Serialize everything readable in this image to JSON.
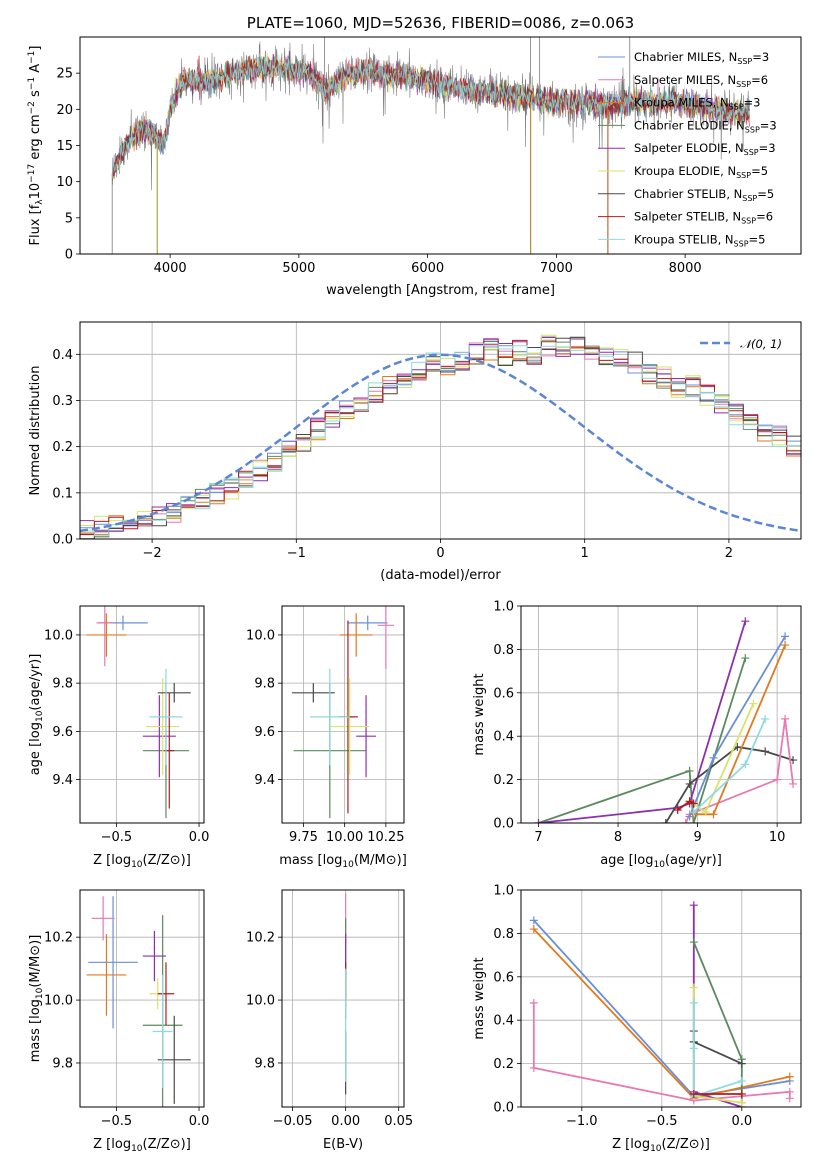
{
  "colors": {
    "chabrier_miles": "#6a8fd8",
    "salpeter_miles": "#e67ab4",
    "kroupa_miles": "#e07a1f",
    "chabrier_elodie": "#5a8a5e",
    "salpeter_elodie": "#8e2fb0",
    "kroupa_elodie": "#d9e36a",
    "chabrier_stelib": "#4a4a4a",
    "salpeter_stelib": "#b01c1c",
    "kroupa_stelib": "#8fd9e0",
    "data": "#7a7a7a",
    "gaussian": "#5b86d6"
  },
  "chart_data": [
    {
      "id": "spectrum",
      "type": "line",
      "title": "PLATE=1060, MJD=52636, FIBERID=0086, z=0.063",
      "xlabel": "wavelength [Angstrom, rest frame]",
      "ylabel": "Flux [fλ10−17 erg cm−2 s−1 A−1]",
      "xlim": [
        3300,
        8900
      ],
      "ylim": [
        0,
        30
      ],
      "xticks": [
        4000,
        5000,
        6000,
        7000,
        8000
      ],
      "yticks": [
        0,
        5,
        10,
        15,
        20,
        25
      ],
      "grid": false,
      "legend_position": "top-right",
      "continuum": [
        [
          3550,
          11
        ],
        [
          3650,
          15
        ],
        [
          3750,
          17
        ],
        [
          3850,
          17
        ],
        [
          3950,
          15
        ],
        [
          4000,
          20
        ],
        [
          4100,
          24
        ],
        [
          4300,
          24
        ],
        [
          4500,
          25
        ],
        [
          4700,
          26
        ],
        [
          4900,
          25.5
        ],
        [
          5100,
          25
        ],
        [
          5200,
          22.5
        ],
        [
          5400,
          25
        ],
        [
          5600,
          25
        ],
        [
          5800,
          24.5
        ],
        [
          6000,
          24
        ],
        [
          6200,
          23
        ],
        [
          6400,
          22.5
        ],
        [
          6600,
          22
        ],
        [
          6800,
          21.5
        ],
        [
          7000,
          21
        ],
        [
          7200,
          21
        ],
        [
          7400,
          20.5
        ],
        [
          7600,
          21
        ],
        [
          7800,
          21
        ],
        [
          8000,
          21
        ],
        [
          8200,
          20
        ],
        [
          8400,
          19.5
        ],
        [
          8500,
          19.5
        ]
      ],
      "series": [
        {
          "name": "Chabrier MILES, N",
          "n_ssp": "=3",
          "color_key": "chabrier_miles"
        },
        {
          "name": "Salpeter MILES, N",
          "n_ssp": "=6",
          "color_key": "salpeter_miles"
        },
        {
          "name": "Kroupa MILES, N",
          "n_ssp": "=3",
          "color_key": "kroupa_miles"
        },
        {
          "name": "Chabrier ELODIE, N",
          "n_ssp": "=3",
          "color_key": "chabrier_elodie"
        },
        {
          "name": "Salpeter ELODIE, N",
          "n_ssp": "=3",
          "color_key": "salpeter_elodie"
        },
        {
          "name": "Kroupa ELODIE, N",
          "n_ssp": "=5",
          "color_key": "kroupa_elodie"
        },
        {
          "name": "Chabrier STELIB, N",
          "n_ssp": "=5",
          "color_key": "chabrier_stelib"
        },
        {
          "name": "Salpeter STELIB, N",
          "n_ssp": "=6",
          "color_key": "salpeter_stelib"
        },
        {
          "name": "Kroupa STELIB, N",
          "n_ssp": "=5",
          "color_key": "kroupa_stelib"
        }
      ],
      "ssp_subscript": "SSP"
    },
    {
      "id": "residuals",
      "type": "histogram",
      "xlabel": "(data-model)/error",
      "ylabel": "Normed distribution",
      "xlim": [
        -2.5,
        2.5
      ],
      "ylim": [
        0,
        0.47
      ],
      "xticks": [
        -2,
        -1,
        0,
        1,
        2
      ],
      "xtick_labels": [
        "−2",
        "−1",
        "0",
        "1",
        "2"
      ],
      "yticks": [
        0.0,
        0.1,
        0.2,
        0.3,
        0.4
      ],
      "ytick_labels": [
        "0.0",
        "0.1",
        "0.2",
        "0.3",
        "0.4"
      ],
      "grid": true,
      "legend_position": "top-right",
      "legend_label": "𝒩(0, 1)",
      "bin_width": 0.1,
      "bin_start": -2.5,
      "bins_reference": [
        0.02,
        0.025,
        0.03,
        0.04,
        0.045,
        0.05,
        0.06,
        0.075,
        0.085,
        0.1,
        0.11,
        0.13,
        0.15,
        0.17,
        0.19,
        0.21,
        0.24,
        0.26,
        0.28,
        0.3,
        0.32,
        0.33,
        0.35,
        0.36,
        0.38,
        0.38,
        0.39,
        0.4,
        0.41,
        0.4,
        0.41,
        0.4,
        0.42,
        0.42,
        0.42,
        0.41,
        0.4,
        0.39,
        0.38,
        0.36,
        0.35,
        0.33,
        0.33,
        0.31,
        0.29,
        0.27,
        0.25,
        0.23,
        0.22,
        0.2,
        0.18,
        0.16,
        0.14,
        0.12,
        0.1,
        0.09,
        0.075,
        0.065,
        0.055,
        0.05,
        0.045,
        0.04,
        0.035,
        0.03,
        0.03,
        0.025,
        0.022,
        0.02,
        0.018,
        0.016
      ]
    },
    {
      "id": "age_vs_Z",
      "type": "errorbar",
      "xlabel": "Z [log10(Z/Z⊙)]",
      "ylabel": "age  [log10(age/yr)]",
      "xlim": [
        -0.72,
        0.03
      ],
      "ylim": [
        9.22,
        10.12
      ],
      "xticks": [
        -0.5,
        0.0
      ],
      "xtick_labels": [
        "−0.5",
        "0.0"
      ],
      "yticks": [
        9.4,
        9.6,
        9.8,
        10.0
      ],
      "ytick_labels": [
        "9.4",
        "9.6",
        "9.8",
        "10.0"
      ],
      "grid": true,
      "points": [
        {
          "c": "chabrier_miles",
          "x": -0.46,
          "xerr": 0.15,
          "y": 10.05,
          "yerr": 0.03
        },
        {
          "c": "salpeter_miles",
          "x": -0.57,
          "xerr": 0.05,
          "y": 10.05,
          "yerr": 0.18
        },
        {
          "c": "kroupa_miles",
          "x": -0.56,
          "xerr": 0.12,
          "y": 10.0,
          "yerr": 0.09
        },
        {
          "c": "chabrier_elodie",
          "x": -0.2,
          "xerr": 0.14,
          "y": 9.52,
          "yerr": 0.28
        },
        {
          "c": "salpeter_elodie",
          "x": -0.24,
          "xerr": 0.1,
          "y": 9.58,
          "yerr": 0.17
        },
        {
          "c": "kroupa_elodie",
          "x": -0.22,
          "xerr": 0.1,
          "y": 9.62,
          "yerr": 0.2
        },
        {
          "c": "chabrier_stelib",
          "x": -0.15,
          "xerr": 0.1,
          "y": 9.76,
          "yerr": 0.04
        },
        {
          "c": "salpeter_stelib",
          "x": -0.18,
          "xerr": 0.03,
          "y": 9.52,
          "yerr": 0.24
        },
        {
          "c": "kroupa_stelib",
          "x": -0.2,
          "xerr": 0.1,
          "y": 9.66,
          "yerr": 0.2
        }
      ]
    },
    {
      "id": "age_vs_mass",
      "type": "errorbar",
      "xlabel": "mass [log10(M/M⊙)]",
      "ylabel": "",
      "xlim": [
        9.62,
        10.36
      ],
      "ylim": [
        9.22,
        10.12
      ],
      "xticks": [
        9.75,
        10.0,
        10.25
      ],
      "xtick_labels": [
        "9.75",
        "10.00",
        "10.25"
      ],
      "yticks": [
        9.4,
        9.6,
        9.8,
        10.0
      ],
      "ytick_labels": [
        "9.4",
        "9.6",
        "9.8",
        "10.0"
      ],
      "grid": true,
      "points": [
        {
          "c": "chabrier_miles",
          "x": 10.14,
          "xerr": 0.12,
          "y": 10.05,
          "yerr": 0.03
        },
        {
          "c": "salpeter_miles",
          "x": 10.25,
          "xerr": 0.05,
          "y": 10.04,
          "yerr": 0.18
        },
        {
          "c": "kroupa_miles",
          "x": 10.07,
          "xerr": 0.1,
          "y": 10.0,
          "yerr": 0.09
        },
        {
          "c": "chabrier_elodie",
          "x": 9.91,
          "xerr": 0.22,
          "y": 9.52,
          "yerr": 0.28
        },
        {
          "c": "salpeter_elodie",
          "x": 10.13,
          "xerr": 0.06,
          "y": 9.58,
          "yerr": 0.17
        },
        {
          "c": "kroupa_elodie",
          "x": 10.03,
          "xerr": 0.12,
          "y": 9.62,
          "yerr": 0.2
        },
        {
          "c": "chabrier_stelib",
          "x": 9.81,
          "xerr": 0.13,
          "y": 9.76,
          "yerr": 0.04
        },
        {
          "c": "salpeter_stelib",
          "x": 10.02,
          "xerr": 0.06,
          "y": 9.66,
          "yerr": 0.4
        },
        {
          "c": "kroupa_stelib",
          "x": 9.91,
          "xerr": 0.12,
          "y": 9.66,
          "yerr": 0.2
        }
      ]
    },
    {
      "id": "weight_vs_age",
      "type": "line",
      "xlabel": "age  [log10(age/yr)]",
      "ylabel": "mass weight",
      "xlim": [
        6.78,
        10.3
      ],
      "ylim": [
        0,
        1.0
      ],
      "xticks": [
        7,
        8,
        9,
        10
      ],
      "xtick_labels": [
        "7",
        "8",
        "9",
        "10"
      ],
      "yticks": [
        0.0,
        0.2,
        0.4,
        0.6,
        0.8,
        1.0
      ],
      "ytick_labels": [
        "0.0",
        "0.2",
        "0.4",
        "0.6",
        "0.8",
        "1.0"
      ],
      "grid": true,
      "series": [
        {
          "c": "chabrier_elodie",
          "points": [
            [
              7.0,
              0.0
            ],
            [
              8.9,
              0.24
            ],
            [
              8.95,
              0.0
            ],
            [
              9.6,
              0.76
            ]
          ]
        },
        {
          "c": "salpeter_elodie",
          "points": [
            [
              7.0,
              0.0
            ],
            [
              8.75,
              0.07
            ],
            [
              8.9,
              0.09
            ],
            [
              9.6,
              0.93
            ]
          ]
        },
        {
          "c": "chabrier_stelib",
          "points": [
            [
              8.6,
              0.0
            ],
            [
              8.9,
              0.18
            ],
            [
              9.5,
              0.35
            ],
            [
              9.85,
              0.33
            ],
            [
              10.2,
              0.29
            ]
          ]
        },
        {
          "c": "salpeter_miles",
          "points": [
            [
              8.85,
              0.0
            ],
            [
              8.9,
              0.04
            ],
            [
              10.0,
              0.2
            ],
            [
              10.1,
              0.48
            ],
            [
              10.2,
              0.18
            ]
          ]
        },
        {
          "c": "chabrier_miles",
          "points": [
            [
              8.9,
              0.03
            ],
            [
              9.2,
              0.3
            ],
            [
              10.1,
              0.86
            ]
          ]
        },
        {
          "c": "kroupa_miles",
          "points": [
            [
              8.95,
              0.04
            ],
            [
              9.2,
              0.04
            ],
            [
              10.1,
              0.82
            ]
          ]
        },
        {
          "c": "kroupa_elodie",
          "points": [
            [
              8.9,
              0.1
            ],
            [
              9.1,
              0.05
            ],
            [
              9.7,
              0.55
            ]
          ]
        },
        {
          "c": "kroupa_stelib",
          "points": [
            [
              8.95,
              0.05
            ],
            [
              9.6,
              0.27
            ],
            [
              9.85,
              0.48
            ]
          ]
        },
        {
          "c": "salpeter_stelib",
          "points": [
            [
              8.75,
              0.06
            ],
            [
              8.9,
              0.1
            ],
            [
              8.95,
              0.09
            ]
          ]
        }
      ]
    },
    {
      "id": "mass_vs_Z",
      "type": "errorbar",
      "xlabel": "Z [log10(Z/Z⊙)]",
      "ylabel": "mass [log10(M/M⊙)]",
      "xlim": [
        -0.72,
        0.03
      ],
      "ylim": [
        9.66,
        10.35
      ],
      "xticks": [
        -0.5,
        0.0
      ],
      "xtick_labels": [
        "−0.5",
        "0.0"
      ],
      "yticks": [
        9.8,
        10.0,
        10.2
      ],
      "ytick_labels": [
        "9.8",
        "10.0",
        "10.2"
      ],
      "grid": true,
      "points": [
        {
          "c": "chabrier_miles",
          "x": -0.52,
          "xerr": 0.15,
          "y": 10.12,
          "yerr": 0.21
        },
        {
          "c": "salpeter_miles",
          "x": -0.58,
          "xerr": 0.07,
          "y": 10.26,
          "yerr": 0.07
        },
        {
          "c": "kroupa_miles",
          "x": -0.56,
          "xerr": 0.12,
          "y": 10.08,
          "yerr": 0.13
        },
        {
          "c": "chabrier_elodie",
          "x": -0.22,
          "xerr": 0.12,
          "y": 9.92,
          "yerr": 0.35
        },
        {
          "c": "salpeter_elodie",
          "x": -0.27,
          "xerr": 0.07,
          "y": 10.14,
          "yerr": 0.08
        },
        {
          "c": "kroupa_elodie",
          "x": -0.25,
          "xerr": 0.05,
          "y": 10.02,
          "yerr": 0.05
        },
        {
          "c": "chabrier_stelib",
          "x": -0.15,
          "xerr": 0.1,
          "y": 9.81,
          "yerr": 0.14
        },
        {
          "c": "salpeter_stelib",
          "x": -0.2,
          "xerr": 0.05,
          "y": 10.02,
          "yerr": 0.1
        },
        {
          "c": "kroupa_stelib",
          "x": -0.22,
          "xerr": 0.06,
          "y": 9.9,
          "yerr": 0.18
        }
      ]
    },
    {
      "id": "mass_vs_EBV",
      "type": "errorbar",
      "xlabel": "E(B-V)",
      "ylabel": "",
      "xlim": [
        -0.06,
        0.055
      ],
      "ylim": [
        9.66,
        10.35
      ],
      "xticks": [
        -0.05,
        0.0,
        0.05
      ],
      "xtick_labels": [
        "−0.05",
        "0.00",
        "0.05"
      ],
      "yticks": [
        9.8,
        10.0,
        10.2
      ],
      "ytick_labels": [
        "9.8",
        "10.0",
        "10.2"
      ],
      "grid": true,
      "points": [
        {
          "c": "salpeter_miles",
          "x": 0.0,
          "xerr": 0.0,
          "y": 10.26,
          "yerr": 0.08
        },
        {
          "c": "chabrier_elodie",
          "x": 0.0,
          "xerr": 0.0,
          "y": 10.1,
          "yerr": 0.16
        },
        {
          "c": "salpeter_elodie",
          "x": 0.0,
          "xerr": 0.0,
          "y": 10.14,
          "yerr": 0.07
        },
        {
          "c": "chabrier_stelib",
          "x": 0.0,
          "xerr": 0.0,
          "y": 9.8,
          "yerr": 0.1
        },
        {
          "c": "salpeter_stelib",
          "x": 0.0,
          "xerr": 0.0,
          "y": 10.06,
          "yerr": 0.06
        },
        {
          "c": "kroupa_stelib",
          "x": 0.0,
          "xerr": 0.0,
          "y": 9.92,
          "yerr": 0.18
        }
      ]
    },
    {
      "id": "weight_vs_Z",
      "type": "line",
      "xlabel": "Z [log10(Z/Z⊙)]",
      "ylabel": "mass weight",
      "xlim": [
        -1.38,
        0.37
      ],
      "ylim": [
        0,
        1.0
      ],
      "xticks": [
        -1.0,
        -0.5,
        0.0
      ],
      "xtick_labels": [
        "−1.0",
        "−0.5",
        "0.0"
      ],
      "yticks": [
        0.0,
        0.2,
        0.4,
        0.6,
        0.8,
        1.0
      ],
      "ytick_labels": [
        "0.0",
        "0.2",
        "0.4",
        "0.6",
        "0.8",
        "1.0"
      ],
      "grid": true,
      "series": [
        {
          "c": "chabrier_miles",
          "points": [
            [
              -1.3,
              0.86
            ],
            [
              -0.3,
              0.05
            ],
            [
              0.3,
              0.12
            ]
          ]
        },
        {
          "c": "kroupa_miles",
          "points": [
            [
              -1.3,
              0.82
            ],
            [
              -0.3,
              0.04
            ],
            [
              0.3,
              0.14
            ]
          ]
        },
        {
          "c": "salpeter_miles",
          "points": [
            [
              -1.3,
              0.48
            ],
            [
              -1.3,
              0.18
            ],
            [
              -0.3,
              0.03
            ],
            [
              0.3,
              0.07
            ],
            [
              0.3,
              0.04
            ]
          ]
        },
        {
          "c": "salpeter_elodie",
          "points": [
            [
              -0.3,
              0.93
            ],
            [
              -0.3,
              0.07
            ],
            [
              0.0,
              0.0
            ]
          ]
        },
        {
          "c": "chabrier_elodie",
          "points": [
            [
              -0.3,
              0.76
            ],
            [
              0.0,
              0.22
            ],
            [
              0.0,
              0.02
            ]
          ]
        },
        {
          "c": "kroupa_elodie",
          "points": [
            [
              -0.3,
              0.55
            ],
            [
              -0.3,
              0.05
            ],
            [
              0.0,
              0.02
            ]
          ]
        },
        {
          "c": "chabrier_stelib",
          "points": [
            [
              -0.3,
              0.35
            ],
            [
              -0.3,
              0.3
            ],
            [
              0.0,
              0.2
            ]
          ]
        },
        {
          "c": "kroupa_stelib",
          "points": [
            [
              -0.3,
              0.48
            ],
            [
              -0.3,
              0.27
            ],
            [
              -0.3,
              0.05
            ],
            [
              0.0,
              0.12
            ]
          ]
        },
        {
          "c": "salpeter_stelib",
          "points": [
            [
              -0.3,
              0.06
            ],
            [
              0.0,
              0.06
            ]
          ]
        }
      ]
    }
  ]
}
